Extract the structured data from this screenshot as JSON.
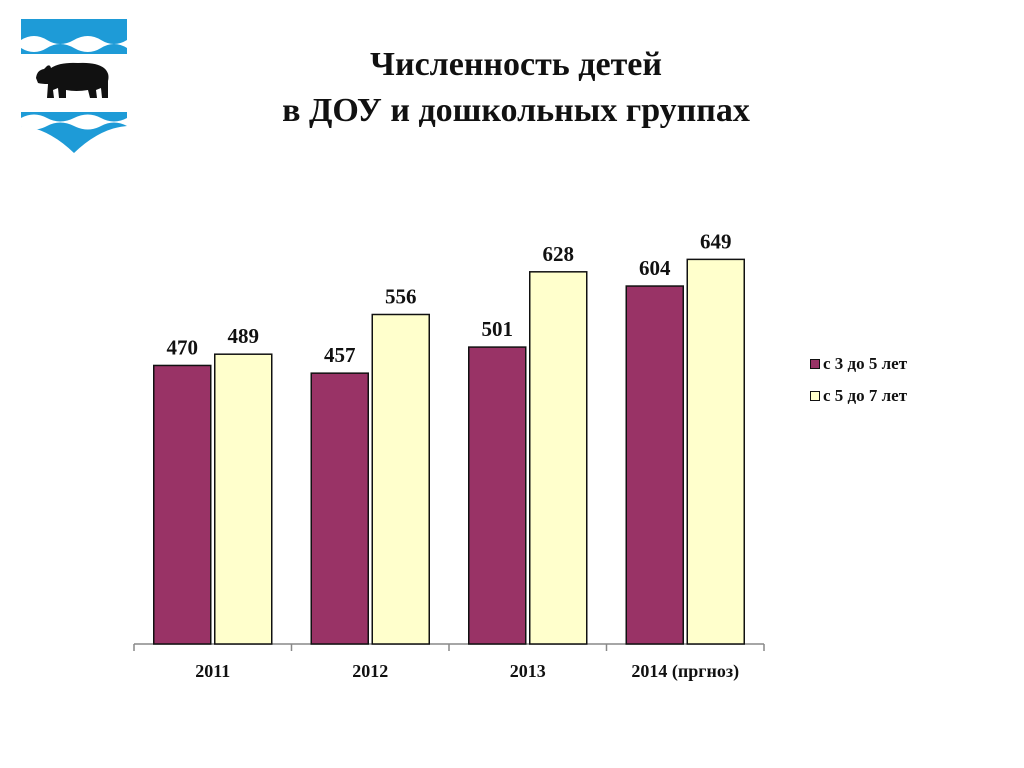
{
  "title": {
    "line1": "Численность детей",
    "line2": "в ДОУ и дошкольных группах"
  },
  "emblem": {
    "name": "coat-of-arms-bear-emblem"
  },
  "colors": {
    "series1": "#993366",
    "series2": "#FFFFCC",
    "emblem_blue": "#1E9BD7",
    "emblem_stripe": "#FFFFFF",
    "bear": "#111111"
  },
  "chart_data": {
    "type": "bar",
    "categories": [
      "2011",
      "2012",
      "2013",
      "2014 (пргноз)"
    ],
    "series": [
      {
        "name": "с 3 до 5 лет",
        "values": [
          470,
          457,
          501,
          604
        ]
      },
      {
        "name": "с 5 до 7 лет",
        "values": [
          489,
          556,
          628,
          649
        ]
      }
    ],
    "ylim": [
      0,
      680
    ],
    "grid": false,
    "yaxis_visible": false,
    "data_labels": true,
    "legend_position": "right"
  }
}
